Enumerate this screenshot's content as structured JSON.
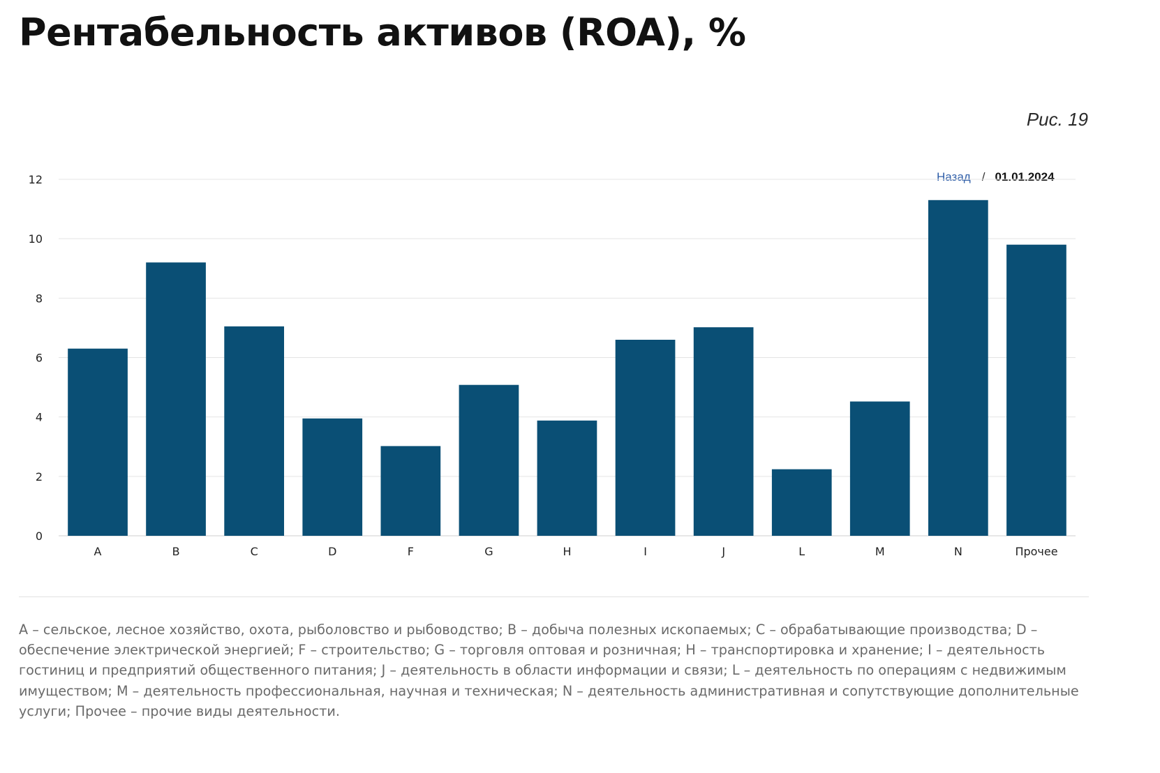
{
  "title": "Рентабельность активов (ROA), %",
  "figure_label": "Рис. 19",
  "nav": {
    "back_label": "Назад",
    "separator": "/",
    "date": "01.01.2024"
  },
  "footnote": "A – сельское, лесное хозяйство, охота, рыболовство и рыбоводство; B – добыча полезных ископаемых; C – обрабатывающие производства; D – обеспечение электрической энергией; F – строительство; G – торговля оптовая и розничная; H – транспортировка и хранение; I – деятельность гостиниц и предприятий общественного питания; J – деятельность в области информации и связи; L – деятельность по операциям с недвижимым имуществом; M – деятельность профессиональная, научная и техническая; N – деятельность административная и сопутствующие дополнительные услуги; Прочее – прочие виды деятельности.",
  "colors": {
    "bar": "#0a4f75",
    "grid": "#e4e4e4",
    "tick_label": "#222222",
    "nav_link": "#2f5ea8"
  },
  "chart_data": {
    "type": "bar",
    "categories": [
      "A",
      "B",
      "C",
      "D",
      "F",
      "G",
      "H",
      "I",
      "J",
      "L",
      "M",
      "N",
      "Прочее"
    ],
    "values": [
      6.3,
      9.2,
      7.05,
      3.95,
      3.02,
      5.08,
      3.88,
      6.6,
      7.02,
      2.24,
      4.52,
      11.3,
      9.8
    ],
    "ylim": [
      0,
      12
    ],
    "yticks": [
      0,
      2,
      4,
      6,
      8,
      10,
      12
    ],
    "grid": true,
    "legend": "none"
  }
}
